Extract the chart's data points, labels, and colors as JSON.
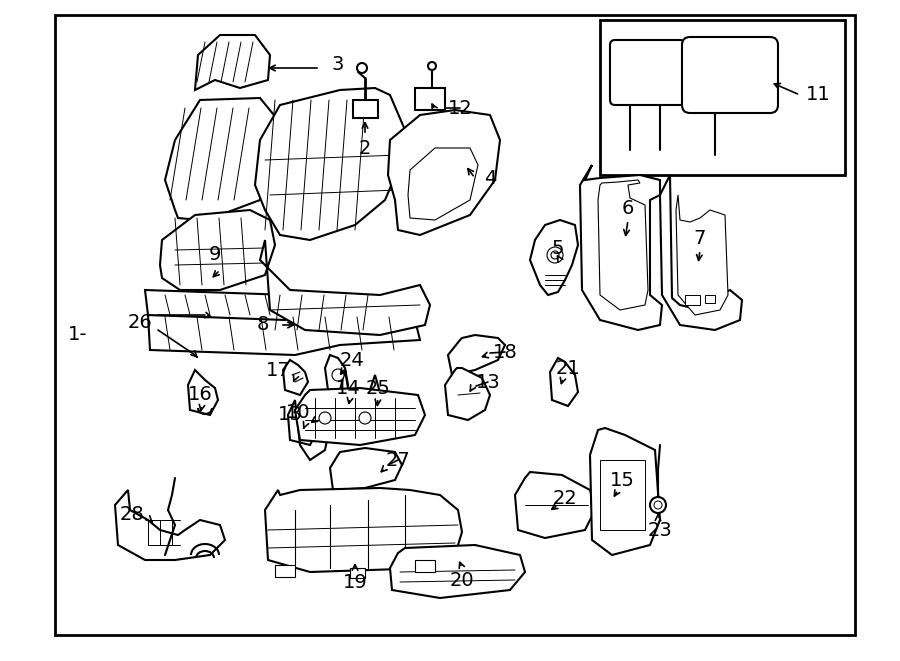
{
  "bg_color": "#ffffff",
  "border_color": "#000000",
  "line_color": "#000000",
  "line_width": 1.5,
  "label_fontsize": 14,
  "figsize": [
    9.0,
    6.61
  ],
  "dpi": 100
}
